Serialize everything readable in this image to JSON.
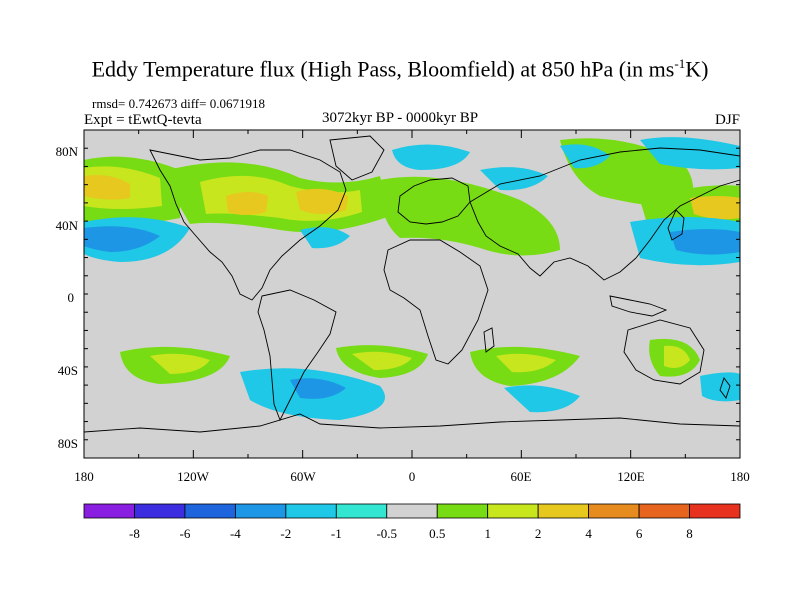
{
  "title": {
    "main": "Eddy Temperature flux (High Pass, Bloomfield) at 850 hPa (in ms",
    "sup": "-1",
    "end": "K)"
  },
  "stats": "rmsd= 0.742673  diff= 0.0671918",
  "expt": "Expt = tEwtQ-tevta",
  "period": "3072kyr BP - 0000kyr BP",
  "season": "DJF",
  "axes": {
    "lat_ticks": [
      "80N",
      "40N",
      "0",
      "40S",
      "80S"
    ],
    "lon_ticks": [
      "180",
      "120W",
      "60W",
      "0",
      "60E",
      "120E",
      "180"
    ]
  },
  "colorbar": {
    "labels": [
      "-8",
      "-6",
      "-4",
      "-2",
      "-1",
      "-0.5",
      "0.5",
      "1",
      "2",
      "4",
      "6",
      "8"
    ],
    "colors": [
      "#8a1ee0",
      "#3c2ee0",
      "#1e64dc",
      "#1e96e6",
      "#1ec8e6",
      "#32e6d2",
      "#d2d2d2",
      "#78dc14",
      "#c8e61e",
      "#e6c81e",
      "#e68c1e",
      "#e6641e",
      "#e6321e"
    ]
  },
  "colors": {
    "land_background": "#d2d2d2",
    "coast": "#000000"
  }
}
